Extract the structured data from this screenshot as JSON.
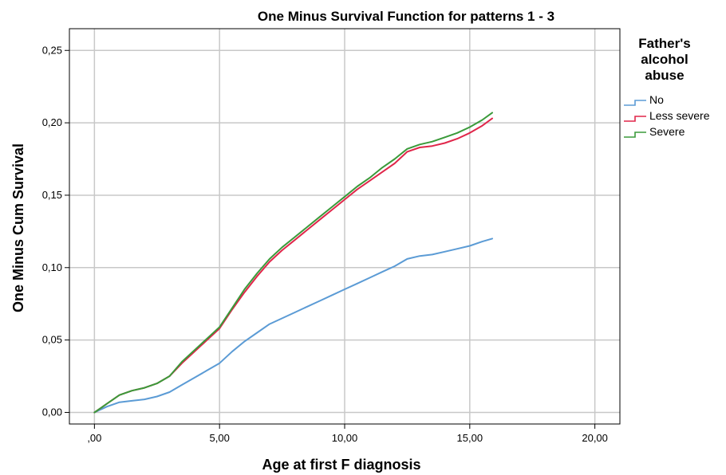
{
  "chart_data": {
    "type": "line",
    "title": "One Minus Survival Function for patterns 1 - 3",
    "xlabel": "Age at first F diagnosis",
    "ylabel": "One Minus Cum Survival",
    "xlim": [
      -1,
      21
    ],
    "ylim": [
      -0.008,
      0.265
    ],
    "x_ticks": [
      0,
      5,
      10,
      15,
      20
    ],
    "x_tick_labels": [
      ",00",
      "5,00",
      "10,00",
      "15,00",
      "20,00"
    ],
    "y_ticks": [
      0,
      0.05,
      0.1,
      0.15,
      0.2,
      0.25
    ],
    "y_tick_labels": [
      "0,00",
      "0,05",
      "0,10",
      "0,15",
      "0,20",
      "0,25"
    ],
    "grid": true,
    "legend": {
      "title_lines": [
        "Father's",
        "alcohol",
        "abuse"
      ],
      "placement": "right"
    },
    "series": [
      {
        "name": "No",
        "color": "#5b9bd5",
        "x": [
          0,
          0.5,
          1,
          1.5,
          2,
          2.5,
          3,
          3.5,
          4,
          4.5,
          5,
          5.5,
          6,
          6.5,
          7,
          7.5,
          8,
          8.5,
          9,
          9.5,
          10,
          10.5,
          11,
          11.5,
          12,
          12.5,
          13,
          13.5,
          14,
          14.5,
          15,
          15.5,
          15.9
        ],
        "y": [
          0,
          0.004,
          0.007,
          0.008,
          0.009,
          0.011,
          0.014,
          0.019,
          0.024,
          0.029,
          0.034,
          0.042,
          0.049,
          0.055,
          0.061,
          0.065,
          0.069,
          0.073,
          0.077,
          0.081,
          0.085,
          0.089,
          0.093,
          0.097,
          0.101,
          0.106,
          0.108,
          0.109,
          0.111,
          0.113,
          0.115,
          0.118,
          0.12
        ]
      },
      {
        "name": "Less severe",
        "color": "#e0264a",
        "x": [
          0,
          0.5,
          1,
          1.5,
          2,
          2.5,
          3,
          3.5,
          4,
          4.5,
          5,
          5.5,
          6,
          6.5,
          7,
          7.5,
          8,
          8.5,
          9,
          9.5,
          10,
          10.5,
          11,
          11.5,
          12,
          12.5,
          13,
          13.5,
          14,
          14.5,
          15,
          15.5,
          15.9
        ],
        "y": [
          0,
          0.006,
          0.012,
          0.015,
          0.017,
          0.02,
          0.025,
          0.034,
          0.042,
          0.05,
          0.058,
          0.071,
          0.083,
          0.094,
          0.104,
          0.112,
          0.119,
          0.126,
          0.133,
          0.14,
          0.147,
          0.154,
          0.16,
          0.166,
          0.172,
          0.18,
          0.183,
          0.184,
          0.186,
          0.189,
          0.193,
          0.198,
          0.203
        ]
      },
      {
        "name": "Severe",
        "color": "#3a9a3a",
        "x": [
          0,
          0.5,
          1,
          1.5,
          2,
          2.5,
          3,
          3.5,
          4,
          4.5,
          5,
          5.5,
          6,
          6.5,
          7,
          7.5,
          8,
          8.5,
          9,
          9.5,
          10,
          10.5,
          11,
          11.5,
          12,
          12.5,
          13,
          13.5,
          14,
          14.5,
          15,
          15.5,
          15.9
        ],
        "y": [
          0,
          0.006,
          0.012,
          0.015,
          0.017,
          0.02,
          0.025,
          0.035,
          0.043,
          0.051,
          0.059,
          0.072,
          0.085,
          0.096,
          0.106,
          0.114,
          0.121,
          0.128,
          0.135,
          0.142,
          0.149,
          0.156,
          0.162,
          0.169,
          0.175,
          0.182,
          0.185,
          0.187,
          0.19,
          0.193,
          0.197,
          0.202,
          0.207
        ]
      }
    ]
  }
}
